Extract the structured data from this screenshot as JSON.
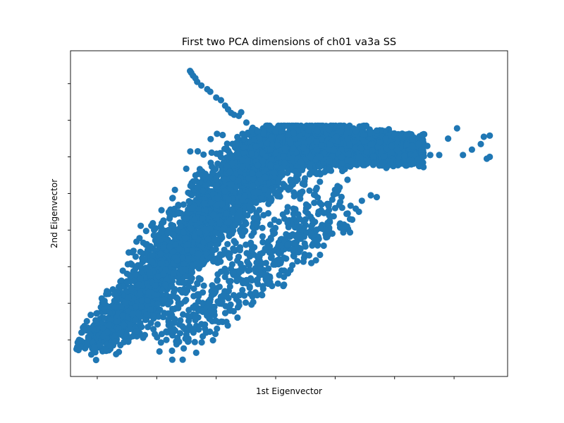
{
  "chart_data": {
    "type": "scatter",
    "title": "First two PCA dimensions of ch01 va3a SS",
    "xlabel": "1st Eigenvector",
    "ylabel": "2nd Eigenvector",
    "tick_labels_shown": false,
    "grid": false,
    "legend": "none",
    "marker_color": "#1f77b4",
    "xlim": [
      -0.45,
      6.9
    ],
    "ylim": [
      -1.0,
      7.9
    ],
    "xticks": [
      0,
      1,
      2,
      3,
      4,
      5,
      6
    ],
    "yticks": [
      0,
      1,
      2,
      3,
      4,
      5,
      6,
      7
    ],
    "series": [
      {
        "cloud": {
          "band_start": [
            0.0,
            -0.2
          ],
          "band_end": [
            3.0,
            5.3
          ],
          "lobe_center": [
            3.6,
            5.3
          ],
          "lobe_spread": [
            0.9,
            0.45
          ],
          "tail_points_x": [
            0.1,
            0.3,
            0.5,
            0.8,
            1.2,
            1.6,
            2.0
          ],
          "tail_points_y": [
            0.1,
            0.9,
            1.6,
            2.2,
            3.0,
            3.6,
            4.4
          ]
        },
        "x": [
          1.56,
          1.58,
          1.61,
          1.65,
          1.68,
          1.75,
          1.85,
          1.9,
          2.0,
          2.08,
          2.15,
          2.2,
          2.25,
          2.3,
          2.38,
          2.42,
          2.5,
          2.6,
          2.7,
          2.8,
          3.0,
          3.3,
          3.55,
          3.7,
          3.85,
          3.9,
          4.1,
          4.2,
          4.35,
          4.48,
          4.6,
          4.7,
          4.75,
          4.8,
          4.85,
          4.95,
          5.0,
          5.05,
          5.12,
          5.3,
          5.4,
          5.45,
          5.55,
          5.6,
          5.75,
          5.9,
          6.05,
          6.15,
          6.3,
          6.45,
          6.5,
          6.55,
          6.6,
          6.6,
          3.2,
          3.4,
          3.55,
          3.6,
          3.75,
          3.9,
          4.0,
          4.15,
          4.25,
          4.4,
          4.45,
          4.6,
          4.7,
          2.1,
          2.3,
          2.5,
          2.6,
          2.7,
          2.9,
          3.05,
          3.2,
          3.3,
          3.35,
          3.5,
          3.6,
          3.4,
          2.6,
          2.5,
          2.45,
          2.35,
          2.1,
          1.95,
          1.7,
          1.65,
          1.2,
          0.95,
          0.85,
          0.75,
          0.6,
          0.55,
          0.4,
          0.3,
          0.2,
          0.15,
          0.05,
          -0.05,
          -0.1,
          -0.02
        ],
        "y": [
          7.35,
          7.3,
          7.22,
          7.15,
          7.05,
          6.95,
          6.85,
          6.78,
          6.62,
          6.55,
          6.4,
          6.3,
          6.2,
          6.15,
          6.12,
          6.22,
          5.6,
          5.75,
          5.7,
          5.65,
          5.7,
          5.65,
          5.72,
          5.7,
          5.65,
          5.75,
          5.7,
          5.65,
          5.7,
          5.6,
          5.65,
          5.72,
          5.4,
          5.55,
          5.5,
          5.3,
          5.62,
          5.5,
          5.55,
          5.3,
          5.35,
          5.2,
          5.3,
          5.05,
          5.05,
          5.5,
          5.78,
          5.05,
          5.2,
          5.35,
          5.55,
          4.95,
          5.0,
          5.58,
          3.2,
          3.3,
          3.65,
          2.9,
          3.05,
          3.4,
          3.6,
          3.15,
          3.3,
          3.5,
          3.8,
          3.95,
          3.9,
          3.0,
          2.7,
          2.6,
          2.4,
          2.25,
          2.55,
          2.4,
          2.6,
          2.3,
          2.85,
          2.55,
          2.1,
          3.1,
          2.45,
          1.6,
          1.55,
          1.65,
          1.05,
          1.25,
          0.8,
          0.55,
          0.4,
          0.65,
          0.35,
          0.9,
          0.1,
          0.3,
          0.2,
          -0.05,
          -0.15,
          -0.3,
          -0.15,
          -0.2,
          -0.4,
          -0.55
        ]
      }
    ]
  }
}
